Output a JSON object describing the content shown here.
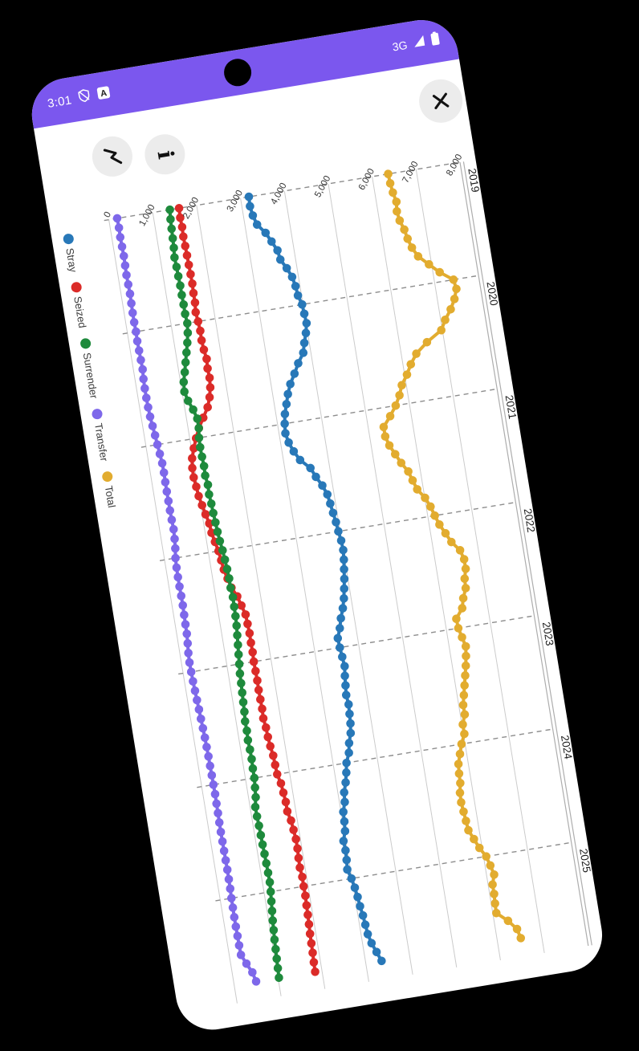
{
  "status_bar": {
    "time": "3:01",
    "network": "3G",
    "icons": [
      "shield-slash-icon",
      "app-notification-icon-a",
      "signal-triangle-icon",
      "battery-icon"
    ]
  },
  "header_buttons": {
    "line_chart_button": "line-chart-icon",
    "info_button": "i",
    "close_button": "close-x-icon"
  },
  "colors": {
    "status_bar_purple": "#7B57EE",
    "phone_background": "#FFFFFF",
    "page_background": "#000000",
    "button_circle": "#ECECEC",
    "grid_solid": "#CBCBCB",
    "grid_dashed": "#8D8D8D",
    "axis_text": "#333333"
  },
  "chart_data": {
    "type": "line",
    "title": "",
    "orientation": "landscape chart rotated 90 degrees clockwise on portrait phone",
    "legend_position": "left-edge (top of original chart)",
    "x_start": "2019-01",
    "x_frequency": "monthly",
    "x_tick_labels": [
      "2019",
      "2020",
      "2021",
      "2022",
      "2023",
      "2024",
      "2025"
    ],
    "y_tick_labels": [
      "0",
      "1,000",
      "2,000",
      "3,000",
      "4,000",
      "5,000",
      "6,000",
      "7,000",
      "8,000"
    ],
    "ylim": [
      0,
      8000
    ],
    "grid": {
      "value_lines": "solid",
      "year_lines": "dashed",
      "right_border": "double-line"
    },
    "series": [
      {
        "name": "Stray",
        "color": "#2878B8",
        "values": [
          3190,
          3180,
          3210,
          3270,
          3430,
          3530,
          3630,
          3660,
          3770,
          3860,
          3900,
          3920,
          3980,
          3995,
          4010,
          3960,
          3890,
          3830,
          3680,
          3560,
          3430,
          3340,
          3270,
          3200,
          3160,
          3140,
          3180,
          3260,
          3370,
          3570,
          3660,
          3770,
          3850,
          3880,
          3910,
          3940,
          3960,
          3990,
          4000,
          3980,
          3950,
          3920,
          3880,
          3840,
          3780,
          3700,
          3640,
          3560,
          3570,
          3590,
          3610,
          3580,
          3560,
          3540,
          3560,
          3545,
          3530,
          3500,
          3430,
          3390,
          3300,
          3260,
          3210,
          3140,
          3120,
          3050,
          3040,
          3020,
          2950,
          2960,
          2950,
          2930,
          2990,
          3030,
          3060,
          3080,
          3110,
          3130,
          3150,
          3200,
          3280,
          3360
        ]
      },
      {
        "name": "Seized",
        "color": "#DB2B28",
        "values": [
          1600,
          1590,
          1600,
          1590,
          1600,
          1605,
          1610,
          1615,
          1620,
          1610,
          1610,
          1590,
          1610,
          1625,
          1620,
          1635,
          1665,
          1650,
          1660,
          1640,
          1590,
          1510,
          1375,
          1240,
          1140,
          1055,
          980,
          950,
          945,
          970,
          990,
          1030,
          1075,
          1125,
          1140,
          1185,
          1230,
          1255,
          1280,
          1330,
          1385,
          1480,
          1540,
          1600,
          1610,
          1620,
          1615,
          1620,
          1610,
          1615,
          1620,
          1615,
          1620,
          1625,
          1615,
          1640,
          1650,
          1670,
          1700,
          1710,
          1720,
          1770,
          1790,
          1810,
          1810,
          1860,
          1880,
          1900,
          1900,
          1890,
          1885,
          1905,
          1900,
          1905,
          1895,
          1890,
          1880,
          1870,
          1865,
          1860,
          1850,
          1845
        ]
      },
      {
        "name": "Surrender",
        "color": "#1E8A3C",
        "values": [
          1390,
          1370,
          1360,
          1350,
          1340,
          1320,
          1330,
          1335,
          1345,
          1345,
          1350,
          1350,
          1365,
          1340,
          1295,
          1240,
          1185,
          1130,
          1070,
          1050,
          1100,
          1180,
          1240,
          1239,
          1210,
          1198,
          1205,
          1216,
          1208,
          1235,
          1226,
          1242,
          1251,
          1265,
          1278,
          1296,
          1324,
          1340,
          1356,
          1367,
          1365,
          1381,
          1375,
          1370,
          1360,
          1340,
          1320,
          1300,
          1280,
          1260,
          1250,
          1240,
          1230,
          1220,
          1200,
          1205,
          1195,
          1205,
          1210,
          1200,
          1200,
          1180,
          1160,
          1115,
          1120,
          1130,
          1135,
          1140,
          1150,
          1155,
          1160,
          1165,
          1150,
          1130,
          1110,
          1090,
          1075,
          1060,
          1050,
          1040,
          1030,
          1020
        ]
      },
      {
        "name": "Transfer",
        "color": "#7E68EA",
        "values": [
          190,
          195,
          190,
          195,
          200,
          195,
          190,
          195,
          200,
          195,
          190,
          190,
          195,
          190,
          195,
          200,
          205,
          190,
          185,
          185,
          190,
          200,
          220,
          242,
          260,
          280,
          300,
          303,
          300,
          298,
          299,
          300,
          305,
          312,
          300,
          280,
          250,
          239,
          235,
          235,
          239,
          240,
          235,
          230,
          225,
          210,
          190,
          180,
          185,
          190,
          200,
          210,
          220,
          230,
          240,
          250,
          255,
          260,
          262,
          265,
          268,
          270,
          268,
          265,
          262,
          260,
          262,
          264,
          266,
          268,
          265,
          262,
          255,
          252,
          250,
          250,
          252,
          255,
          260,
          350,
          450,
          500
        ]
      },
      {
        "name": "Total",
        "color": "#E2AC2F",
        "values": [
          6364,
          6375,
          6400,
          6445,
          6420,
          6450,
          6520,
          6560,
          6623,
          6730,
          6940,
          7150,
          7430,
          7460,
          7380,
          7260,
          7100,
          6975,
          6613,
          6335,
          6175,
          6052,
          5899,
          5811,
          5689,
          5528,
          5344,
          5344,
          5404,
          5501,
          5603,
          5729,
          5793,
          5863,
          6006,
          6095,
          6157,
          6227,
          6331,
          6430,
          6592,
          6650,
          6650,
          6590,
          6580,
          6490,
          6430,
          6260,
          6270,
          6320,
          6370,
          6340,
          6300,
          6250,
          6200,
          6150,
          6100,
          6100,
          6020,
          6020,
          5920,
          5850,
          5780,
          5760,
          5750,
          5710,
          5700,
          5720,
          5740,
          5760,
          5850,
          5940,
          6060,
          6120,
          6170,
          6100,
          6100,
          6085,
          6080,
          6310,
          6480,
          6530
        ]
      }
    ]
  }
}
